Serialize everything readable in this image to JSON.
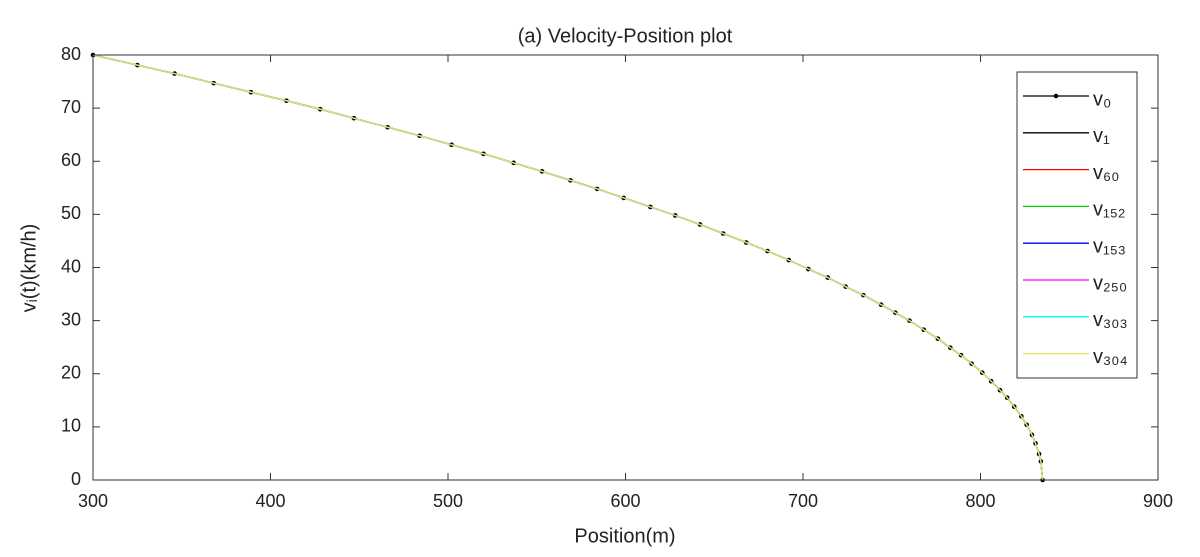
{
  "chart_data": {
    "type": "line",
    "title": "(a) Velocity-Position plot",
    "x_label": "Position(m)",
    "y_label": "vᵢ(t)(km/h)",
    "x": [
      300,
      325,
      346,
      368,
      389,
      409,
      428,
      447,
      466,
      484,
      502,
      520,
      537,
      553,
      569,
      584,
      599,
      614,
      628,
      642,
      655,
      668,
      680,
      692,
      703,
      714,
      724,
      734,
      744,
      752,
      760,
      768,
      776,
      783,
      789,
      795,
      801,
      806,
      811,
      815,
      819,
      823,
      826,
      829,
      831,
      833,
      834,
      835
    ],
    "series": [
      {
        "name": "v₀",
        "color": "#000000",
        "marker": true,
        "values": [
          80.0,
          78.1,
          76.5,
          74.7,
          73.0,
          71.4,
          69.8,
          68.1,
          66.4,
          64.8,
          63.1,
          61.4,
          59.7,
          58.1,
          56.4,
          54.8,
          53.1,
          51.4,
          49.8,
          48.1,
          46.4,
          44.7,
          43.1,
          41.4,
          39.7,
          38.1,
          36.4,
          34.8,
          33.0,
          31.5,
          30.0,
          28.3,
          26.6,
          24.9,
          23.5,
          21.9,
          20.2,
          18.6,
          16.9,
          15.5,
          13.8,
          12.0,
          10.4,
          8.5,
          6.9,
          4.9,
          3.5,
          0
        ]
      },
      {
        "name": "v₁",
        "color": "#000000",
        "values": [
          80.0,
          78.1,
          76.5,
          74.7,
          73.0,
          71.4,
          69.8,
          68.1,
          66.4,
          64.8,
          63.1,
          61.4,
          59.7,
          58.1,
          56.4,
          54.8,
          53.1,
          51.4,
          49.8,
          48.1,
          46.4,
          44.7,
          43.1,
          41.4,
          39.7,
          38.1,
          36.4,
          34.8,
          33.0,
          31.5,
          30.0,
          28.3,
          26.6,
          24.9,
          23.5,
          21.9,
          20.2,
          18.6,
          16.9,
          15.5,
          13.8,
          12.0,
          10.4,
          8.5,
          6.9,
          4.9,
          3.5,
          0
        ]
      },
      {
        "name": "v₆₀",
        "color": "#ff0000",
        "values": [
          80.0,
          78.1,
          76.5,
          74.7,
          73.0,
          71.4,
          69.8,
          68.1,
          66.4,
          64.8,
          63.1,
          61.4,
          59.7,
          58.1,
          56.4,
          54.8,
          53.1,
          51.4,
          49.8,
          48.1,
          46.4,
          44.7,
          43.1,
          41.4,
          39.7,
          38.1,
          36.4,
          34.8,
          33.0,
          31.5,
          30.0,
          28.3,
          26.6,
          24.9,
          23.5,
          21.9,
          20.2,
          18.6,
          16.9,
          15.5,
          13.8,
          12.0,
          10.4,
          8.5,
          6.9,
          4.9,
          3.5,
          0
        ]
      },
      {
        "name": "v₁₅₂",
        "color": "#00cc00",
        "values": [
          80.0,
          78.1,
          76.5,
          74.7,
          73.0,
          71.4,
          69.8,
          68.1,
          66.4,
          64.8,
          63.1,
          61.4,
          59.7,
          58.1,
          56.4,
          54.8,
          53.1,
          51.4,
          49.8,
          48.1,
          46.4,
          44.7,
          43.1,
          41.4,
          39.7,
          38.1,
          36.4,
          34.8,
          33.0,
          31.5,
          30.0,
          28.3,
          26.6,
          24.9,
          23.5,
          21.9,
          20.2,
          18.6,
          16.9,
          15.5,
          13.8,
          12.0,
          10.4,
          8.5,
          6.9,
          4.9,
          3.5,
          0
        ]
      },
      {
        "name": "v₁₅₃",
        "color": "#0000ff",
        "values": [
          80.0,
          78.1,
          76.5,
          74.7,
          73.0,
          71.4,
          69.8,
          68.1,
          66.4,
          64.8,
          63.1,
          61.4,
          59.7,
          58.1,
          56.4,
          54.8,
          53.1,
          51.4,
          49.8,
          48.1,
          46.4,
          44.7,
          43.1,
          41.4,
          39.7,
          38.1,
          36.4,
          34.8,
          33.0,
          31.5,
          30.0,
          28.3,
          26.6,
          24.9,
          23.5,
          21.9,
          20.2,
          18.6,
          16.9,
          15.5,
          13.8,
          12.0,
          10.4,
          8.5,
          6.9,
          4.9,
          3.5,
          0
        ]
      },
      {
        "name": "v₂₅₀",
        "color": "#ff00ff",
        "values": [
          80.0,
          78.1,
          76.5,
          74.7,
          73.0,
          71.4,
          69.8,
          68.1,
          66.4,
          64.8,
          63.1,
          61.4,
          59.7,
          58.1,
          56.4,
          54.8,
          53.1,
          51.4,
          49.8,
          48.1,
          46.4,
          44.7,
          43.1,
          41.4,
          39.7,
          38.1,
          36.4,
          34.8,
          33.0,
          31.5,
          30.0,
          28.3,
          26.6,
          24.9,
          23.5,
          21.9,
          20.2,
          18.6,
          16.9,
          15.5,
          13.8,
          12.0,
          10.4,
          8.5,
          6.9,
          4.9,
          3.5,
          0
        ]
      },
      {
        "name": "v₃₀₃",
        "color": "#00ffff",
        "values": [
          80.0,
          78.1,
          76.5,
          74.7,
          73.0,
          71.4,
          69.8,
          68.1,
          66.4,
          64.8,
          63.1,
          61.4,
          59.7,
          58.1,
          56.4,
          54.8,
          53.1,
          51.4,
          49.8,
          48.1,
          46.4,
          44.7,
          43.1,
          41.4,
          39.7,
          38.1,
          36.4,
          34.8,
          33.0,
          31.5,
          30.0,
          28.3,
          26.6,
          24.9,
          23.5,
          21.9,
          20.2,
          18.6,
          16.9,
          15.5,
          13.8,
          12.0,
          10.4,
          8.5,
          6.9,
          4.9,
          3.5,
          0
        ]
      },
      {
        "name": "v₃₀₄",
        "color": "#e6e65c",
        "values": [
          80.0,
          78.1,
          76.5,
          74.7,
          73.0,
          71.4,
          69.8,
          68.1,
          66.4,
          64.8,
          63.1,
          61.4,
          59.7,
          58.1,
          56.4,
          54.8,
          53.1,
          51.4,
          49.8,
          48.1,
          46.4,
          44.7,
          43.1,
          41.4,
          39.7,
          38.1,
          36.4,
          34.8,
          33.0,
          31.5,
          30.0,
          28.3,
          26.6,
          24.9,
          23.5,
          21.9,
          20.2,
          18.6,
          16.9,
          15.5,
          13.8,
          12.0,
          10.4,
          8.5,
          6.9,
          4.9,
          3.5,
          0
        ]
      }
    ],
    "xlim": [
      300,
      900
    ],
    "xticks": [
      300,
      400,
      500,
      600,
      700,
      800,
      900
    ],
    "ylim": [
      0,
      80
    ],
    "yticks": [
      0,
      10,
      20,
      30,
      40,
      50,
      60,
      70,
      80
    ],
    "legend": "upper right"
  }
}
